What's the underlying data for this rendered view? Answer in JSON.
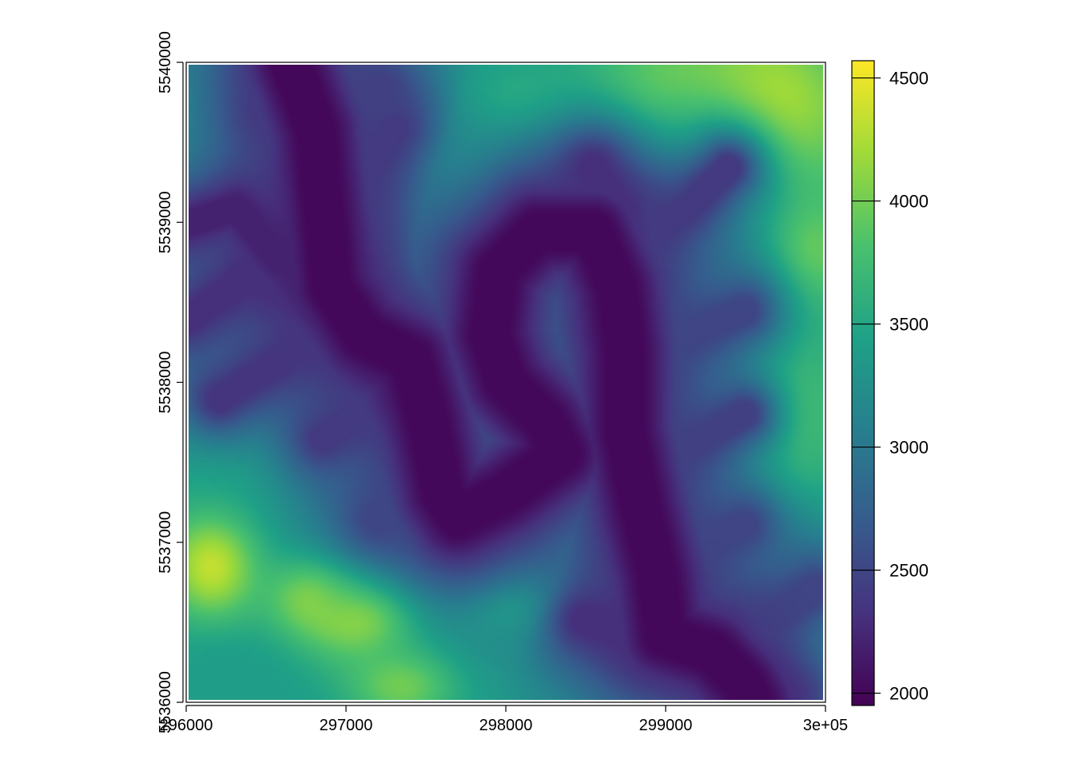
{
  "chart_data": {
    "type": "heatmap",
    "title": "",
    "xlabel": "",
    "ylabel": "",
    "xlim": [
      296000,
      300000
    ],
    "ylim": [
      5536000,
      5540000
    ],
    "x_ticks": [
      {
        "value": 296000,
        "label": "296000"
      },
      {
        "value": 297000,
        "label": "297000"
      },
      {
        "value": 298000,
        "label": "298000"
      },
      {
        "value": 299000,
        "label": "299000"
      },
      {
        "value": 300000,
        "label": "3e+05"
      }
    ],
    "y_ticks": [
      {
        "value": 5536000,
        "label": "5536000"
      },
      {
        "value": 5537000,
        "label": "5537000"
      },
      {
        "value": 5538000,
        "label": "5538000"
      },
      {
        "value": 5539000,
        "label": "5539000"
      },
      {
        "value": 5540000,
        "label": "5540000"
      }
    ],
    "colorbar": {
      "range": [
        1950,
        4570
      ],
      "ticks": [
        {
          "value": 2000,
          "label": "2000"
        },
        {
          "value": 2500,
          "label": "2500"
        },
        {
          "value": 3000,
          "label": "3000"
        },
        {
          "value": 3500,
          "label": "3500"
        },
        {
          "value": 4000,
          "label": "4000"
        },
        {
          "value": 4500,
          "label": "4500"
        }
      ],
      "palette": [
        "#440154",
        "#46327e",
        "#365c8d",
        "#277f8e",
        "#1fa187",
        "#4ac16d",
        "#a0da39",
        "#fde725"
      ]
    },
    "valleys": [
      {
        "depth": 2000,
        "path": [
          [
            296650,
            5540000
          ],
          [
            296800,
            5539600
          ],
          [
            296850,
            5539100
          ],
          [
            296900,
            5538600
          ],
          [
            297100,
            5538300
          ],
          [
            297400,
            5538150
          ],
          [
            297500,
            5537800
          ],
          [
            297600,
            5537300
          ],
          [
            297700,
            5537150
          ],
          [
            298000,
            5537300
          ],
          [
            298350,
            5537550
          ],
          [
            298250,
            5537750
          ],
          [
            298000,
            5538000
          ],
          [
            297900,
            5538300
          ],
          [
            297950,
            5538700
          ],
          [
            298200,
            5538950
          ],
          [
            298550,
            5538950
          ],
          [
            298700,
            5538600
          ],
          [
            298750,
            5538200
          ],
          [
            298750,
            5537700
          ],
          [
            298850,
            5537200
          ],
          [
            298950,
            5536800
          ],
          [
            299000,
            5536400
          ],
          [
            299300,
            5536300
          ],
          [
            299500,
            5536100
          ],
          [
            299550,
            5536000
          ]
        ]
      },
      {
        "depth": 2200,
        "path": [
          [
            296000,
            5539000
          ],
          [
            296300,
            5539100
          ],
          [
            296550,
            5538800
          ],
          [
            296900,
            5538600
          ]
        ]
      },
      {
        "depth": 2300,
        "path": [
          [
            296000,
            5538400
          ],
          [
            296350,
            5538650
          ],
          [
            296900,
            5538600
          ]
        ]
      },
      {
        "depth": 2350,
        "path": [
          [
            296200,
            5537900
          ],
          [
            296600,
            5538150
          ],
          [
            296950,
            5538450
          ]
        ]
      },
      {
        "depth": 2400,
        "path": [
          [
            296500,
            5539700
          ],
          [
            296700,
            5539450
          ],
          [
            296850,
            5539100
          ]
        ]
      },
      {
        "depth": 2400,
        "path": [
          [
            297300,
            5539600
          ],
          [
            297100,
            5539300
          ],
          [
            296950,
            5538900
          ]
        ]
      },
      {
        "depth": 2450,
        "path": [
          [
            297200,
            5539850
          ],
          [
            297050,
            5539650
          ],
          [
            296850,
            5539350
          ]
        ]
      },
      {
        "depth": 2400,
        "path": [
          [
            296850,
            5537650
          ],
          [
            297150,
            5537850
          ],
          [
            297450,
            5538100
          ]
        ]
      },
      {
        "depth": 2500,
        "path": [
          [
            297200,
            5537150
          ],
          [
            297450,
            5537300
          ],
          [
            297600,
            5537350
          ]
        ]
      },
      {
        "depth": 2300,
        "path": [
          [
            298700,
            5539100
          ],
          [
            298600,
            5539250
          ],
          [
            298550,
            5539350
          ]
        ]
      },
      {
        "depth": 2400,
        "path": [
          [
            299400,
            5539350
          ],
          [
            299150,
            5539100
          ],
          [
            298850,
            5538900
          ],
          [
            298750,
            5538700
          ]
        ]
      },
      {
        "depth": 2500,
        "path": [
          [
            299500,
            5538450
          ],
          [
            299150,
            5538300
          ],
          [
            298800,
            5538200
          ]
        ]
      },
      {
        "depth": 2450,
        "path": [
          [
            299500,
            5537800
          ],
          [
            299150,
            5537600
          ],
          [
            298800,
            5537500
          ]
        ]
      },
      {
        "depth": 2500,
        "path": [
          [
            299500,
            5537100
          ],
          [
            299200,
            5536950
          ],
          [
            298900,
            5536800
          ]
        ]
      },
      {
        "depth": 2300,
        "path": [
          [
            298500,
            5536500
          ],
          [
            298800,
            5536420
          ],
          [
            299000,
            5536400
          ]
        ]
      },
      {
        "depth": 2500,
        "path": [
          [
            299950,
            5536700
          ],
          [
            299650,
            5536500
          ],
          [
            299400,
            5536300
          ]
        ]
      },
      {
        "depth": 2300,
        "path": [
          [
            299700,
            5536000
          ],
          [
            299550,
            5536150
          ],
          [
            299400,
            5536300
          ]
        ]
      }
    ],
    "peaks": [
      {
        "x": 297100,
        "y": 5536550,
        "height": 4600,
        "sx": 380,
        "sy": 300
      },
      {
        "x": 296150,
        "y": 5536850,
        "height": 4550,
        "sx": 300,
        "sy": 350
      },
      {
        "x": 296800,
        "y": 5536650,
        "height": 4300,
        "sx": 300,
        "sy": 250
      },
      {
        "x": 299600,
        "y": 5539700,
        "height": 4600,
        "sx": 650,
        "sy": 600
      },
      {
        "x": 299700,
        "y": 5537800,
        "height": 4450,
        "sx": 400,
        "sy": 650
      },
      {
        "x": 298950,
        "y": 5539800,
        "height": 4200,
        "sx": 550,
        "sy": 400
      },
      {
        "x": 299900,
        "y": 5538800,
        "height": 4200,
        "sx": 300,
        "sy": 400
      },
      {
        "x": 296500,
        "y": 5539800,
        "height": 3500,
        "sx": 500,
        "sy": 300
      },
      {
        "x": 298100,
        "y": 5539700,
        "height": 3900,
        "sx": 500,
        "sy": 300
      },
      {
        "x": 297700,
        "y": 5539500,
        "height": 3700,
        "sx": 400,
        "sy": 300
      },
      {
        "x": 297600,
        "y": 5538600,
        "height": 3300,
        "sx": 400,
        "sy": 500
      },
      {
        "x": 298450,
        "y": 5538300,
        "height": 3250,
        "sx": 200,
        "sy": 350
      },
      {
        "x": 297100,
        "y": 5537900,
        "height": 2900,
        "sx": 300,
        "sy": 300
      },
      {
        "x": 296300,
        "y": 5537600,
        "height": 3700,
        "sx": 400,
        "sy": 400
      },
      {
        "x": 298100,
        "y": 5536600,
        "height": 4000,
        "sx": 400,
        "sy": 200
      },
      {
        "x": 298700,
        "y": 5536300,
        "height": 3400,
        "sx": 300,
        "sy": 300
      },
      {
        "x": 299850,
        "y": 5536400,
        "height": 3900,
        "sx": 300,
        "sy": 250
      },
      {
        "x": 296200,
        "y": 5536150,
        "height": 3400,
        "sx": 300,
        "sy": 250
      },
      {
        "x": 297350,
        "y": 5536100,
        "height": 4200,
        "sx": 350,
        "sy": 250
      }
    ]
  }
}
